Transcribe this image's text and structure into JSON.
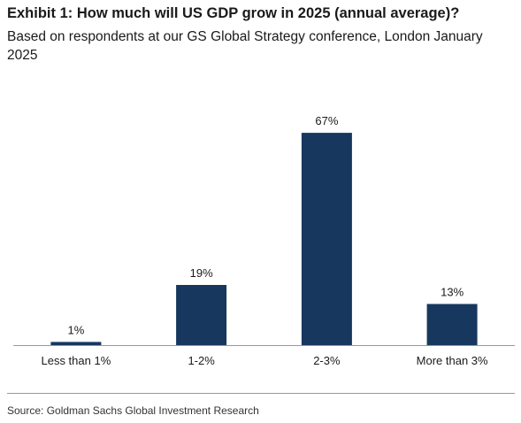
{
  "header": {
    "title": "Exhibit 1: How much will US GDP grow in 2025 (annual average)?",
    "subtitle": "Based on respondents at our GS Global Strategy conference, London January 2025"
  },
  "footer": {
    "source": "Source: Goldman Sachs Global Investment Research"
  },
  "chart_data": {
    "type": "bar",
    "categories": [
      "Less than 1%",
      "1-2%",
      "2-3%",
      "More than 3%"
    ],
    "values": [
      1,
      19,
      67,
      13
    ],
    "value_labels": [
      "1%",
      "19%",
      "67%",
      "13%"
    ],
    "unit": "%",
    "ylim": [
      0,
      75
    ],
    "grid": false,
    "legend": "none",
    "bar_color": "#17375e",
    "axis_color": "#999999"
  }
}
